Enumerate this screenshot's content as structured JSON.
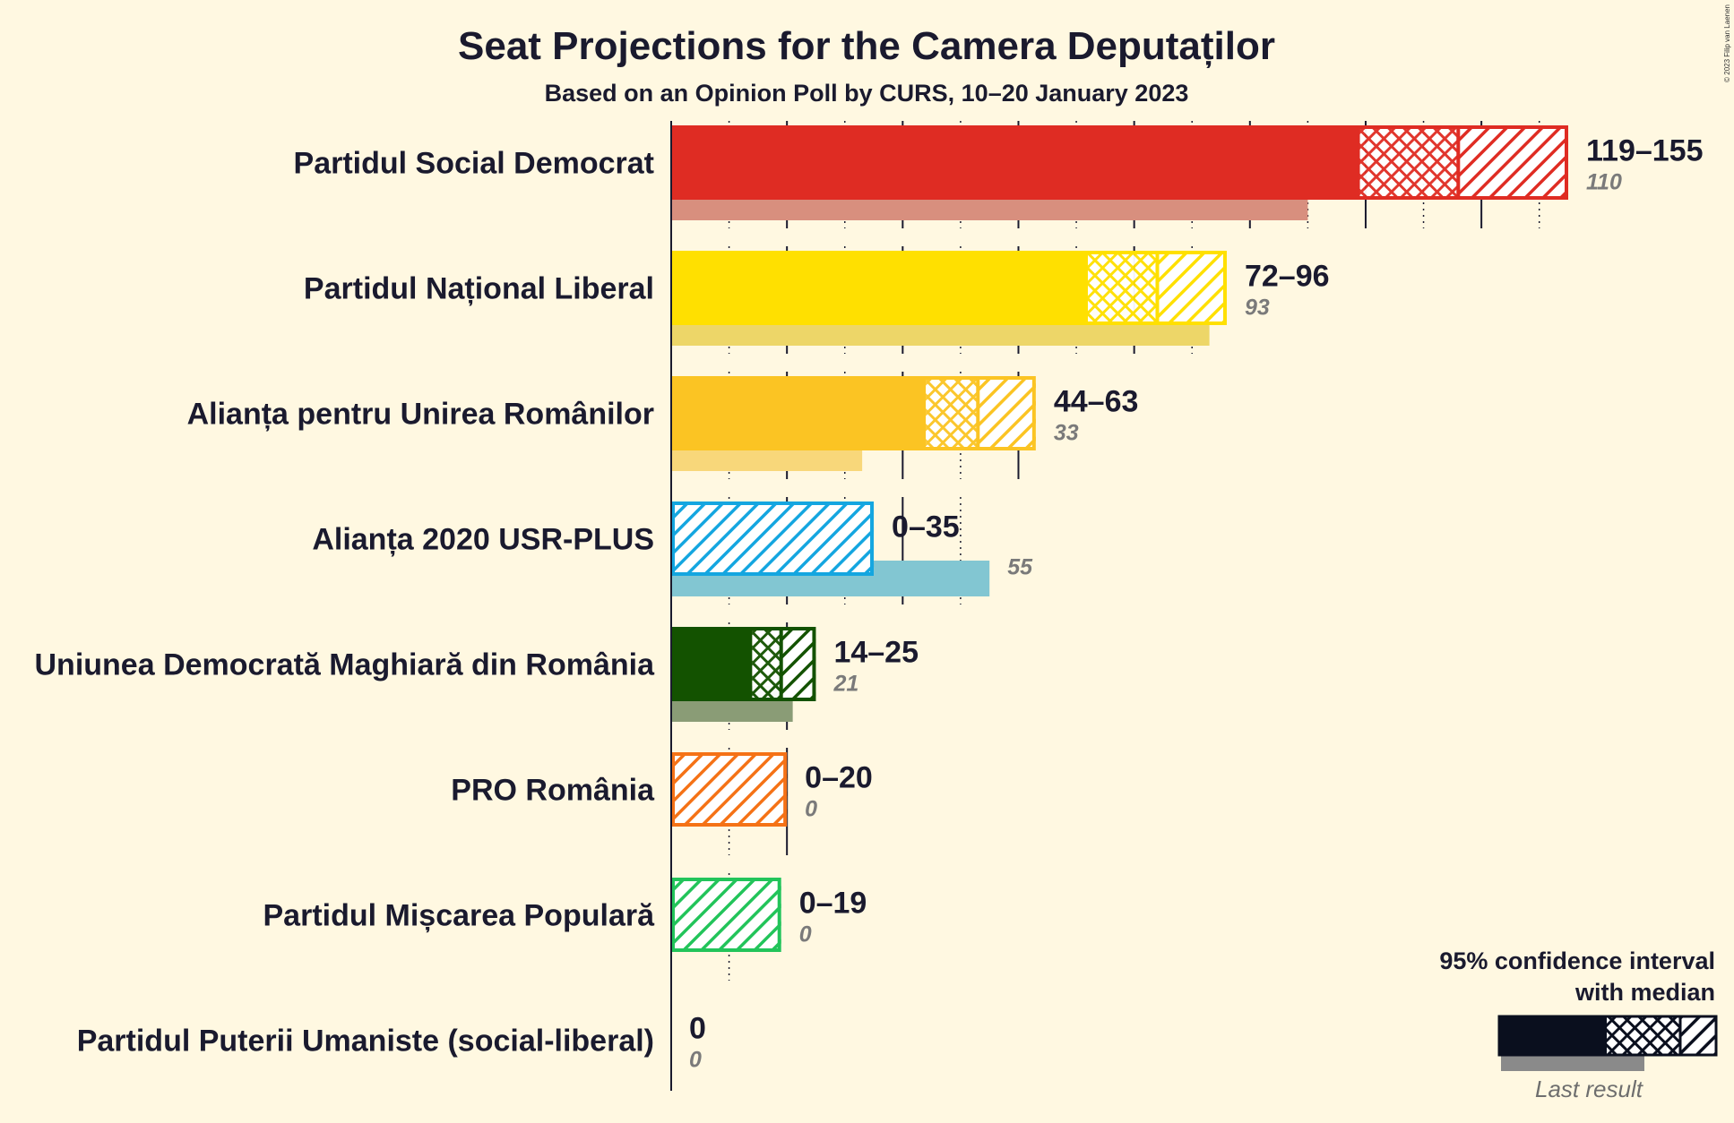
{
  "chart_data": {
    "type": "bar",
    "title": "Seat Projections for the Camera Deputaților",
    "subtitle": "Based on an Opinion Poll by CURS, 10–20 January 2023",
    "copyright": "© 2023 Filip van Laenen",
    "x_max": 155,
    "grid_step": 10,
    "legend": {
      "title_line1": "95% confidence interval",
      "title_line2": "with median",
      "last_result_label": "Last result",
      "placement": "bottom-right"
    },
    "parties": [
      {
        "name": "Partidul Social Democrat",
        "low": 119,
        "median": 136,
        "high": 155,
        "last": 110,
        "range_label": "119–155",
        "last_label": "110",
        "color": "#DF2C23",
        "last_color": "#D88F7E"
      },
      {
        "name": "Partidul Național Liberal",
        "low": 72,
        "median": 84,
        "high": 96,
        "last": 93,
        "range_label": "72–96",
        "last_label": "93",
        "color": "#FFE000",
        "last_color": "#EDD668"
      },
      {
        "name": "Alianța pentru Unirea Românilor",
        "low": 44,
        "median": 53,
        "high": 63,
        "last": 33,
        "range_label": "44–63",
        "last_label": "33",
        "color": "#FBC423",
        "last_color": "#F8D77A"
      },
      {
        "name": "Alianța 2020 USR-PLUS",
        "low": 0,
        "median": 0,
        "high": 35,
        "last": 55,
        "range_label": "0–35",
        "last_label": "55",
        "color": "#14A6E0",
        "last_color": "#82C6D2"
      },
      {
        "name": "Uniunea Democrată Maghiară din România",
        "low": 14,
        "median": 19,
        "high": 25,
        "last": 21,
        "range_label": "14–25",
        "last_label": "21",
        "color": "#135200",
        "last_color": "#8A9C76"
      },
      {
        "name": "PRO România",
        "low": 0,
        "median": 0,
        "high": 20,
        "last": 0,
        "range_label": "0–20",
        "last_label": "0",
        "color": "#F57216",
        "last_color": "#F8B27E"
      },
      {
        "name": "Partidul Mișcarea Populară",
        "low": 0,
        "median": 0,
        "high": 19,
        "last": 0,
        "range_label": "0–19",
        "last_label": "0",
        "color": "#22C45A",
        "last_color": "#8CDCA6"
      },
      {
        "name": "Partidul Puterii Umaniste (social-liberal)",
        "low": 0,
        "median": 0,
        "high": 0,
        "last": 0,
        "range_label": "0",
        "last_label": "0",
        "color": "#1a1a2e",
        "last_color": "#999999"
      }
    ]
  }
}
